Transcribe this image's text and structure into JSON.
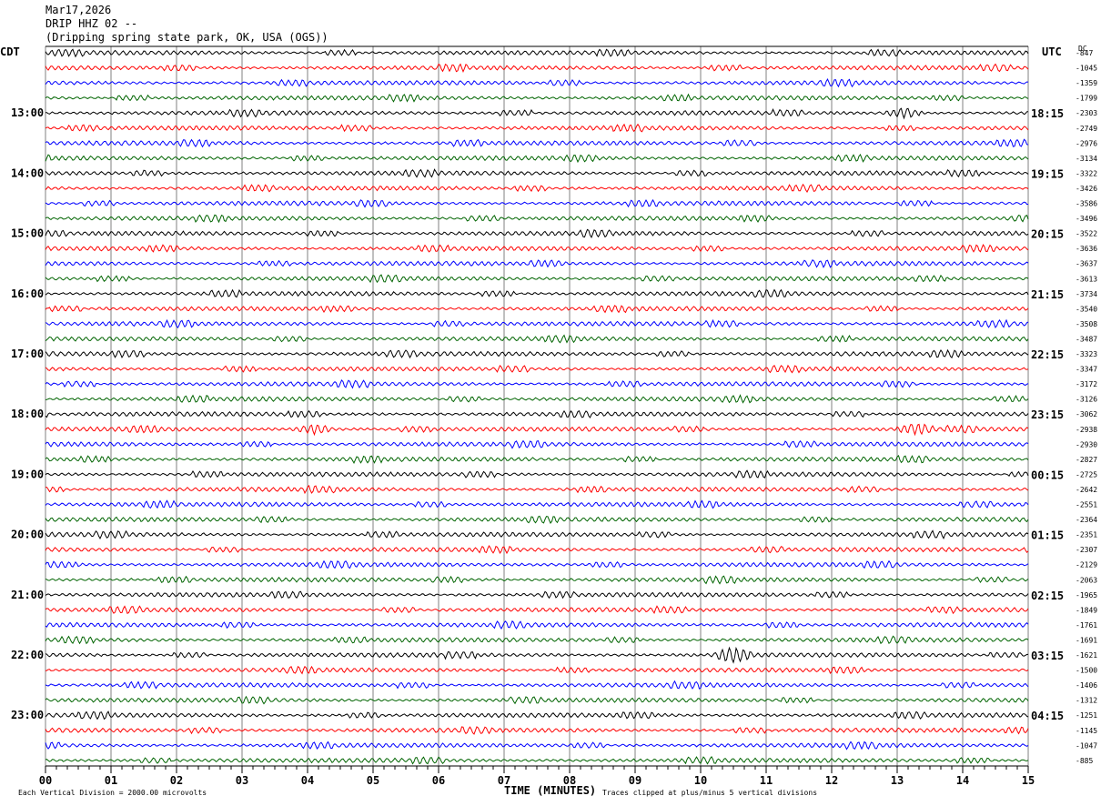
{
  "header": {
    "date": "Mar17,2026",
    "station": "DRIP HHZ 02 --",
    "location": "(Dripping spring state park, OK, USA (OGS))"
  },
  "axes": {
    "left_zone": "CDT",
    "right_zone": "UTC",
    "dc_label": "DC",
    "x_title": "TIME (MINUTES)"
  },
  "footer": {
    "scale_note": "Each Vertical Division = 2000.00 microvolts",
    "clip_note": "Traces clipped at plus/minus 5 vertical divisions"
  },
  "colors": {
    "trace_cycle": [
      "#000000",
      "#ff0000",
      "#0000ff",
      "#006400"
    ],
    "grid": "#808080",
    "frame": "#000000"
  },
  "chart_data": {
    "type": "line",
    "title": "DRIP HHZ 02 --",
    "xlabel": "TIME (MINUTES)",
    "x_ticks": [
      "00",
      "01",
      "02",
      "03",
      "04",
      "05",
      "06",
      "07",
      "08",
      "09",
      "10",
      "11",
      "12",
      "13",
      "14",
      "15"
    ],
    "xlim": [
      0,
      15
    ],
    "left_hour_labels": [
      "13:00",
      "14:00",
      "15:00",
      "16:00",
      "17:00",
      "18:00",
      "19:00",
      "20:00",
      "21:00",
      "22:00",
      "23:00"
    ],
    "right_hour_labels": [
      "18:15",
      "19:15",
      "20:15",
      "21:15",
      "22:15",
      "23:15",
      "00:15",
      "01:15",
      "02:15",
      "03:15",
      "04:15"
    ],
    "hour_label_first_row": 4,
    "hour_label_every": 4,
    "dc_offsets": [
      "-847",
      "-1045",
      "-1359",
      "-1799",
      "-2303",
      "-2749",
      "-2976",
      "-3134",
      "-3322",
      "-3426",
      "-3586",
      "-3496",
      "-3522",
      "-3636",
      "-3637",
      "-3613",
      "-3734",
      "-3540",
      "-3508",
      "-3487",
      "-3323",
      "-3347",
      "-3172",
      "-3126",
      "-3062",
      "-2938",
      "-2930",
      "-2827",
      "-2725",
      "-2642",
      "-2551",
      "-2364",
      "-2351",
      "-2307",
      "-2129",
      "-2063",
      "-1965",
      "-1849",
      "-1761",
      "-1691",
      "-1621",
      "-1500",
      "-1406",
      "-1312",
      "-1251",
      "-1145",
      "-1047",
      "-885"
    ],
    "events": [
      {
        "row": 4,
        "minute": 13.1,
        "note": "burst"
      },
      {
        "row": 25,
        "minute": 4.1,
        "note": "burst"
      },
      {
        "row": 25,
        "minute": 13.3,
        "note": "burst"
      },
      {
        "row": 40,
        "minute": 10.5,
        "note": "burst"
      }
    ],
    "grid": true
  }
}
